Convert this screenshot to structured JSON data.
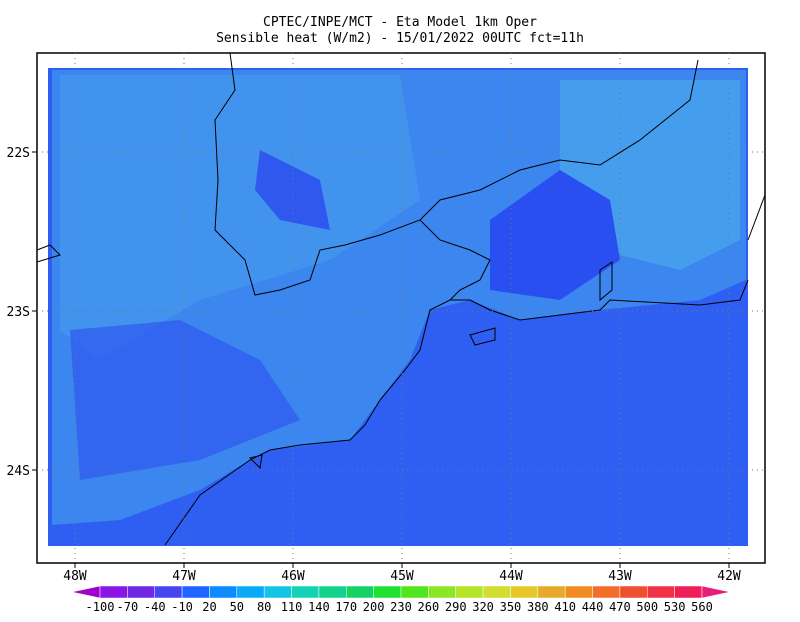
{
  "title": {
    "line1": "CPTEC/INPE/MCT -  Eta Model 1km Oper",
    "line2": "Sensible heat (W/m2) - 15/01/2022 00UTC fct=11h"
  },
  "map": {
    "lon_labels": [
      "48W",
      "47W",
      "46W",
      "45W",
      "44W",
      "43W",
      "42W"
    ],
    "lat_labels": [
      "22S",
      "23S",
      "24S"
    ]
  },
  "colorbar": {
    "ticks": [
      -100,
      -70,
      -40,
      -10,
      20,
      50,
      80,
      110,
      140,
      170,
      200,
      230,
      260,
      290,
      320,
      350,
      380,
      410,
      440,
      470,
      500,
      530,
      560
    ],
    "colors": [
      "#a000d0",
      "#8c14e6",
      "#6e28e6",
      "#4646f0",
      "#1e64ff",
      "#0a8cff",
      "#0aaaf5",
      "#14c3e6",
      "#14d2b4",
      "#14d28c",
      "#14d264",
      "#1ee132",
      "#50e61e",
      "#8ce628",
      "#b4e628",
      "#d2dc32",
      "#e6c828",
      "#e6aa28",
      "#f08c28",
      "#f06e28",
      "#f05032",
      "#f03246",
      "#f01e5a",
      "#e61e78"
    ]
  }
}
